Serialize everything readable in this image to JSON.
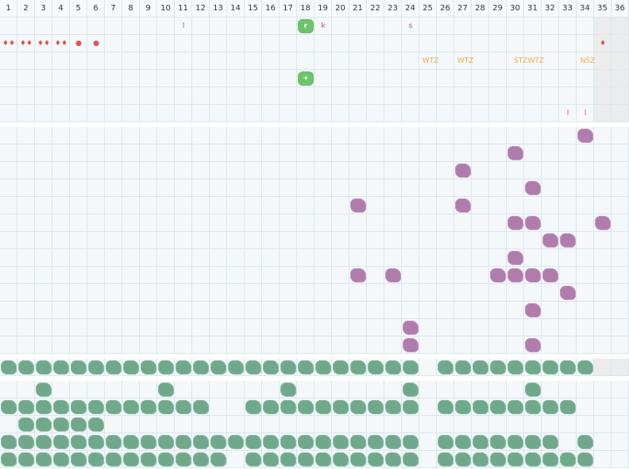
{
  "columns": [
    "1",
    "2",
    "3",
    "4",
    "5",
    "6",
    "7",
    "8",
    "9",
    "10",
    "11",
    "12",
    "13",
    "14",
    "15",
    "16",
    "17",
    "18",
    "19",
    "20",
    "21",
    "22",
    "23",
    "24",
    "25",
    "26",
    "27",
    "28",
    "29",
    "30",
    "31",
    "32",
    "33",
    "34",
    "35",
    "36"
  ],
  "colors": {
    "purple": "#b07cac",
    "green": "#6fa88a",
    "lime": "#6cc36a",
    "red": "#e0534a",
    "orange": "#f2a93b",
    "brown": "#9c5b73"
  },
  "top_marks": [
    {
      "col": 11,
      "row": 0,
      "text": "l",
      "color": "#9c5b73"
    },
    {
      "col": 19,
      "row": 0,
      "text": "k",
      "color": "#9c5b73"
    },
    {
      "col": 24,
      "row": 0,
      "text": "s",
      "color": "#9c5b73"
    },
    {
      "col": 1,
      "row": 1,
      "text": "♦♦",
      "color": "#e0534a"
    },
    {
      "col": 2,
      "row": 1,
      "text": "♦♦",
      "color": "#e0534a"
    },
    {
      "col": 3,
      "row": 1,
      "text": "♦♦",
      "color": "#e0534a"
    },
    {
      "col": 4,
      "row": 1,
      "text": "♦♦",
      "color": "#e0534a"
    },
    {
      "col": 5,
      "row": 1,
      "text": "●",
      "color": "#e0534a"
    },
    {
      "col": 6,
      "row": 1,
      "text": "●",
      "color": "#e0534a"
    },
    {
      "col": 35,
      "row": 1,
      "text": "♦",
      "color": "#e0534a"
    },
    {
      "col": 25,
      "row": 2,
      "text": "WTZ",
      "color": "#f2a93b"
    },
    {
      "col": 27,
      "row": 2,
      "text": "WTZ",
      "color": "#f2a93b"
    },
    {
      "col": 30,
      "row": 2,
      "text": "ŚTZWTZ",
      "color": "#f2a93b"
    },
    {
      "col": 34,
      "row": 2,
      "text": "NŚZ",
      "color": "#f2a93b"
    },
    {
      "col": 33,
      "row": 5,
      "text": "l",
      "color": "#e0534a"
    },
    {
      "col": 34,
      "row": 5,
      "text": "l",
      "color": "#e0534a"
    }
  ],
  "lime_blocks": [
    {
      "col": 18,
      "row": 0,
      "text": "r"
    },
    {
      "col": 18,
      "row": 3,
      "text": "+"
    }
  ],
  "purple_blocks": [
    [
      34,
      0
    ],
    [
      30,
      1
    ],
    [
      27,
      2
    ],
    [
      31,
      3
    ],
    [
      21,
      4
    ],
    [
      27,
      4
    ],
    [
      30,
      5
    ],
    [
      31,
      5
    ],
    [
      35,
      5
    ],
    [
      32,
      6
    ],
    [
      33,
      6
    ],
    [
      30,
      7
    ],
    [
      21,
      8
    ],
    [
      23,
      8
    ],
    [
      29,
      8
    ],
    [
      30,
      8
    ],
    [
      31,
      8
    ],
    [
      32,
      8
    ],
    [
      33,
      9
    ],
    [
      31,
      10
    ],
    [
      24,
      11
    ],
    [
      24,
      12
    ],
    [
      31,
      12
    ]
  ],
  "green_rows": [
    [
      1,
      2,
      3,
      4,
      5,
      6,
      7,
      8,
      9,
      10,
      11,
      12,
      13,
      14,
      15,
      16,
      17,
      18,
      19,
      20,
      21,
      22,
      23,
      24,
      26,
      27,
      28,
      29,
      30,
      31,
      32,
      33,
      34
    ],
    [
      3,
      10,
      17,
      24,
      31
    ],
    [
      1,
      2,
      3,
      4,
      5,
      6,
      7,
      8,
      9,
      10,
      11,
      12,
      15,
      16,
      17,
      18,
      19,
      20,
      21,
      22,
      23,
      24,
      26,
      27,
      28,
      29,
      30,
      31,
      32,
      33
    ],
    [
      2,
      3,
      4,
      5,
      6
    ],
    [
      1,
      2,
      3,
      4,
      5,
      6,
      7,
      8,
      9,
      10,
      11,
      12,
      13,
      14,
      15,
      16,
      17,
      18,
      19,
      20,
      21,
      22,
      23,
      24,
      26,
      27,
      28,
      29,
      30,
      31,
      32,
      34
    ],
    [
      1,
      2,
      3,
      4,
      5,
      6,
      7,
      8,
      9,
      10,
      11,
      12,
      13,
      15,
      16,
      17,
      18,
      19,
      20,
      21,
      22,
      23,
      24,
      26,
      27,
      28,
      29,
      30,
      31,
      32,
      33,
      34
    ]
  ]
}
